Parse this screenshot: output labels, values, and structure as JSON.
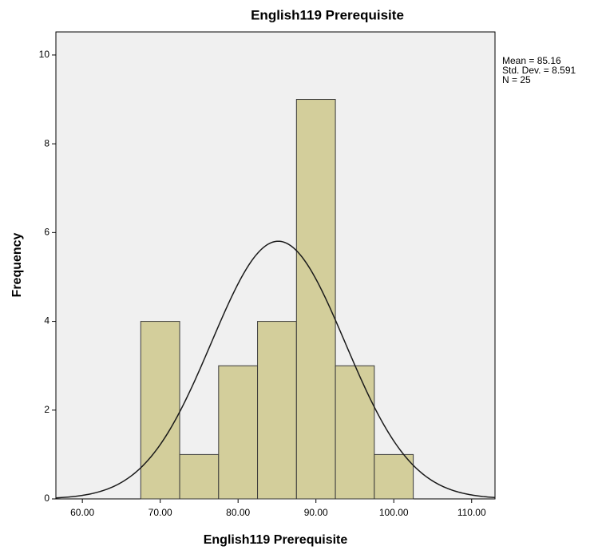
{
  "chart_data": {
    "type": "histogram",
    "title": "English119 Prerequisite",
    "x_label": "English119 Prerequisite",
    "y_label": "Frequency",
    "bins": [
      67.5,
      72.5,
      77.5,
      82.5,
      87.5,
      92.5,
      97.5,
      102.5
    ],
    "values": [
      4,
      1,
      3,
      4,
      9,
      3,
      1
    ],
    "color": "#d3ce9b",
    "edge_color": "#3a3a3a",
    "curve_color": "#1a1a1a",
    "background": "#f0f0f0",
    "xlim": [
      56.6,
      113
    ],
    "ylim": [
      0,
      10.52
    ],
    "xticks": [
      {
        "value": 60,
        "label": "60.00"
      },
      {
        "value": 70,
        "label": "70.00"
      },
      {
        "value": 80,
        "label": "80.00"
      },
      {
        "value": 90,
        "label": "90.00"
      },
      {
        "value": 100,
        "label": "100.00"
      },
      {
        "value": 110,
        "label": "110.00"
      }
    ],
    "yticks": [
      0,
      2,
      4,
      6,
      8,
      10
    ],
    "normal_curve": true,
    "stats": [
      {
        "value": 85.16,
        "label": "Mean = 85.16"
      },
      {
        "value": 8.591,
        "label": "Std. Dev. = 8.591"
      },
      {
        "value": 25,
        "label": "N = 25"
      }
    ]
  }
}
